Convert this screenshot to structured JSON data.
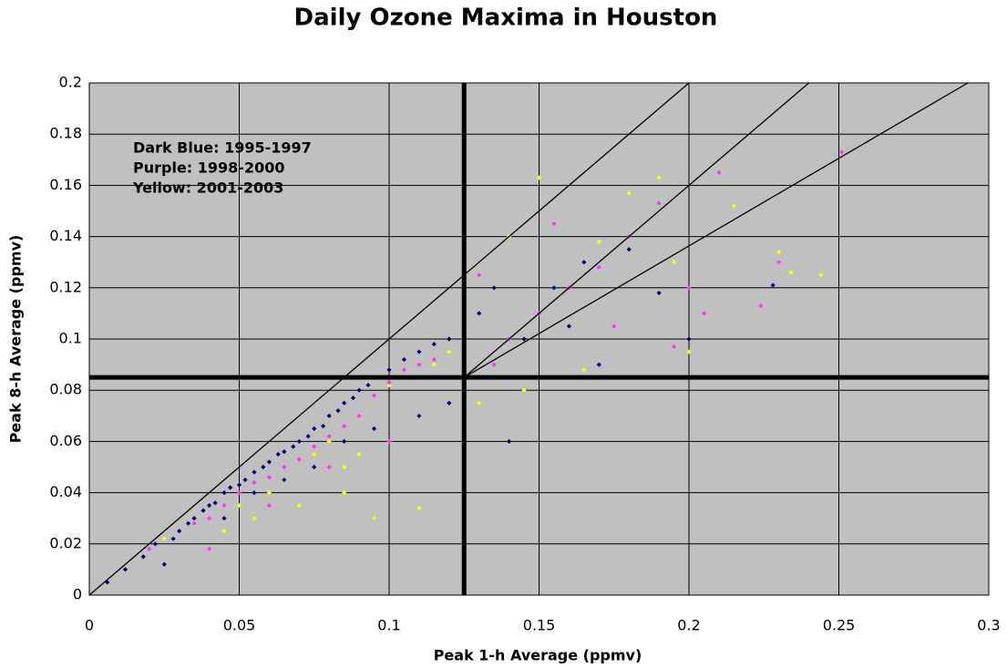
{
  "chart_data": {
    "type": "scatter",
    "title": "Daily Ozone Maxima in Houston",
    "x_label": "Peak 1-h Average (ppmv)",
    "y_label": "Peak 8-h Average (ppmv)",
    "annotations": [
      "Dark Blue: 1995-1997",
      "Purple: 1998-2000",
      "Yellow: 2001-2003"
    ],
    "xlim": [
      0,
      0.3
    ],
    "ylim": [
      0,
      0.2
    ],
    "xticks": [
      0,
      0.05,
      0.1,
      0.15,
      0.2,
      0.25,
      0.3
    ],
    "yticks": [
      0,
      0.02,
      0.04,
      0.06,
      0.08,
      0.1,
      0.12,
      0.14,
      0.16,
      0.18,
      0.2
    ],
    "grid": true,
    "background": "#c0c0c0",
    "thresholds": {
      "x": 0.125,
      "y": 0.085
    },
    "reference_lines": [
      {
        "x": [
          0,
          0.2
        ],
        "y": [
          0,
          0.2
        ]
      },
      {
        "x": [
          0.125,
          0.24
        ],
        "y": [
          0.085,
          0.2
        ]
      },
      {
        "x": [
          0.125,
          0.293
        ],
        "y": [
          0.085,
          0.2
        ]
      }
    ],
    "series": [
      {
        "color": "#ffff00",
        "x": [
          0.025,
          0.035,
          0.045,
          0.05,
          0.055,
          0.06,
          0.065,
          0.07,
          0.075,
          0.08,
          0.085,
          0.09,
          0.095,
          0.1,
          0.11,
          0.115,
          0.12,
          0.13,
          0.14,
          0.145,
          0.15,
          0.16,
          0.165,
          0.17,
          0.18,
          0.19,
          0.195,
          0.2,
          0.215,
          0.23,
          0.234,
          0.244,
          0.1,
          0.085,
          0.09
        ],
        "values": [
          0.022,
          0.028,
          0.025,
          0.035,
          0.03,
          0.04,
          0.045,
          0.035,
          0.055,
          0.06,
          0.05,
          0.07,
          0.03,
          0.082,
          0.034,
          0.09,
          0.095,
          0.075,
          0.14,
          0.08,
          0.163,
          0.12,
          0.088,
          0.138,
          0.157,
          0.163,
          0.13,
          0.095,
          0.152,
          0.134,
          0.126,
          0.125,
          0.06,
          0.04,
          0.055
        ]
      },
      {
        "color": "#ff33ff",
        "x": [
          0.02,
          0.03,
          0.035,
          0.04,
          0.045,
          0.05,
          0.055,
          0.06,
          0.065,
          0.07,
          0.075,
          0.08,
          0.085,
          0.09,
          0.095,
          0.1,
          0.105,
          0.11,
          0.115,
          0.12,
          0.13,
          0.135,
          0.14,
          0.15,
          0.155,
          0.16,
          0.17,
          0.175,
          0.18,
          0.19,
          0.195,
          0.2,
          0.205,
          0.21,
          0.224,
          0.23,
          0.251,
          0.04,
          0.06,
          0.08,
          0.1,
          0.125
        ],
        "values": [
          0.018,
          0.025,
          0.028,
          0.03,
          0.035,
          0.04,
          0.044,
          0.046,
          0.05,
          0.053,
          0.058,
          0.062,
          0.066,
          0.07,
          0.078,
          0.083,
          0.088,
          0.09,
          0.092,
          0.1,
          0.125,
          0.09,
          0.1,
          0.11,
          0.145,
          0.12,
          0.128,
          0.105,
          0.14,
          0.153,
          0.097,
          0.12,
          0.11,
          0.165,
          0.113,
          0.13,
          0.173,
          0.018,
          0.035,
          0.05,
          0.06,
          0.08
        ]
      },
      {
        "color": "#000080",
        "x": [
          0.006,
          0.012,
          0.018,
          0.022,
          0.025,
          0.028,
          0.03,
          0.033,
          0.035,
          0.038,
          0.04,
          0.042,
          0.045,
          0.047,
          0.05,
          0.052,
          0.055,
          0.058,
          0.06,
          0.063,
          0.065,
          0.068,
          0.07,
          0.073,
          0.075,
          0.078,
          0.08,
          0.083,
          0.085,
          0.088,
          0.09,
          0.093,
          0.095,
          0.1,
          0.105,
          0.11,
          0.115,
          0.12,
          0.125,
          0.13,
          0.135,
          0.14,
          0.145,
          0.155,
          0.16,
          0.165,
          0.17,
          0.18,
          0.19,
          0.2,
          0.228,
          0.045,
          0.055,
          0.065,
          0.075,
          0.085,
          0.095,
          0.11,
          0.12
        ],
        "values": [
          0.005,
          0.01,
          0.015,
          0.02,
          0.012,
          0.022,
          0.025,
          0.028,
          0.03,
          0.033,
          0.035,
          0.036,
          0.04,
          0.042,
          0.043,
          0.045,
          0.048,
          0.05,
          0.052,
          0.055,
          0.056,
          0.058,
          0.06,
          0.062,
          0.065,
          0.066,
          0.07,
          0.072,
          0.075,
          0.077,
          0.08,
          0.082,
          0.085,
          0.088,
          0.092,
          0.095,
          0.098,
          0.1,
          0.097,
          0.11,
          0.12,
          0.06,
          0.1,
          0.12,
          0.105,
          0.13,
          0.09,
          0.135,
          0.118,
          0.1,
          0.121,
          0.03,
          0.04,
          0.045,
          0.05,
          0.06,
          0.065,
          0.07,
          0.075
        ]
      }
    ]
  }
}
